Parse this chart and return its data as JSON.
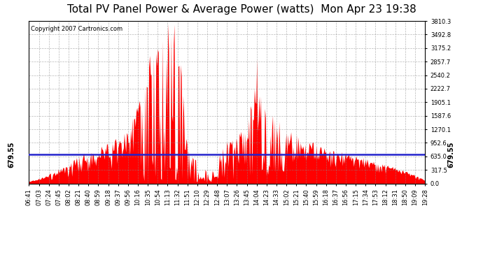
{
  "title": "Total PV Panel Power & Average Power (watts)  Mon Apr 23 19:38",
  "copyright": "Copyright 2007 Cartronics.com",
  "avg_line_y": 679.55,
  "avg_label": "679.55",
  "ymax": 3810.3,
  "yticks": [
    0.0,
    317.5,
    635.0,
    952.6,
    1270.1,
    1587.6,
    1905.1,
    2222.7,
    2540.2,
    2857.7,
    3175.2,
    3492.8,
    3810.3
  ],
  "area_color": "#FF0000",
  "line_color": "#2222CC",
  "bg_color": "#FFFFFF",
  "grid_color": "#888888",
  "title_fontsize": 11,
  "copyright_fontsize": 6,
  "xtick_labels": [
    "06:41",
    "07:03",
    "07:24",
    "07:45",
    "08:02",
    "08:21",
    "08:40",
    "08:59",
    "09:18",
    "09:37",
    "09:56",
    "10:16",
    "10:35",
    "10:54",
    "11:13",
    "11:32",
    "11:51",
    "12:10",
    "12:29",
    "12:48",
    "13:07",
    "13:26",
    "13:45",
    "14:04",
    "14:23",
    "14:33",
    "15:02",
    "15:21",
    "15:40",
    "15:59",
    "16:18",
    "16:37",
    "16:56",
    "17:15",
    "17:34",
    "17:53",
    "18:12",
    "18:31",
    "18:50",
    "19:09",
    "19:28"
  ]
}
